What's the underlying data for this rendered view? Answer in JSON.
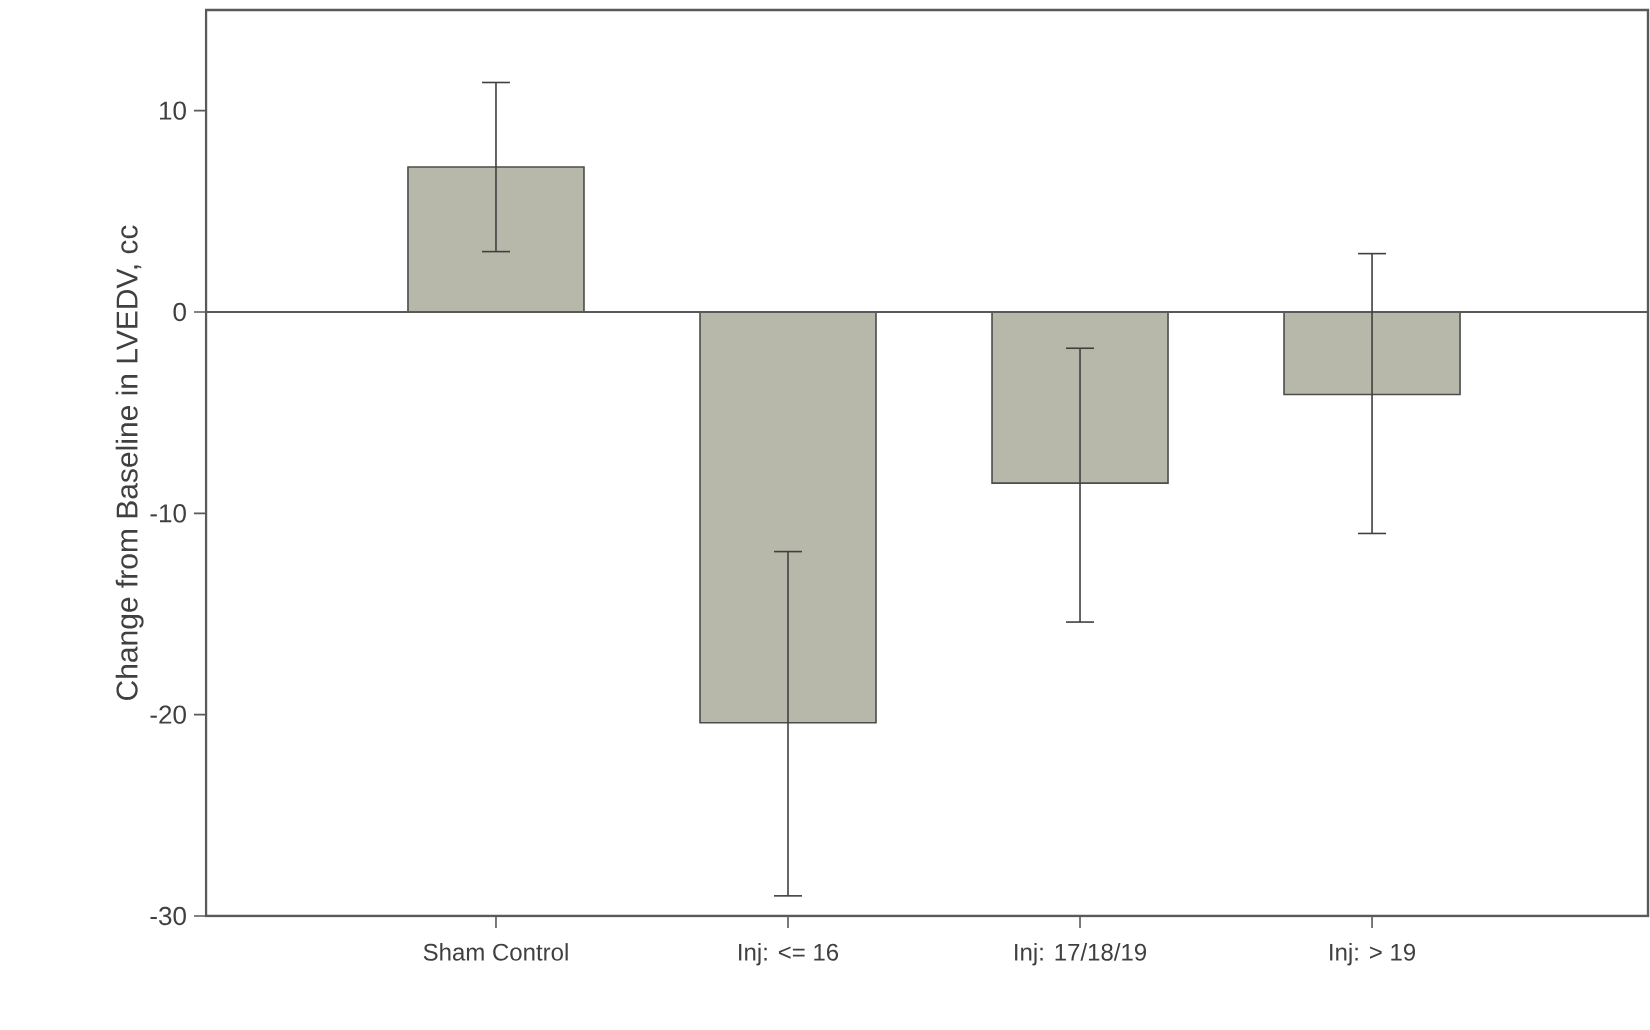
{
  "chart_data": {
    "type": "bar",
    "ylabel": "Change from Baseline in LVEDV, cc",
    "categories": [
      "Sham Control",
      "Inj: <= 16",
      "Inj: 17/18/19",
      "Inj: > 19"
    ],
    "values": [
      7.2,
      -20.4,
      -8.5,
      -4.1
    ],
    "errors": [
      [
        3.0,
        11.4
      ],
      [
        -29.0,
        -11.9
      ],
      [
        -15.4,
        -1.8
      ],
      [
        -11.0,
        2.9
      ]
    ],
    "color": "#b8b8aa",
    "ylim": [
      -30,
      15
    ],
    "yticks": [
      -30,
      -20,
      -10,
      0,
      10
    ],
    "ref_lines": [
      {
        "axis": "y",
        "value": 0
      }
    ],
    "grid": false
  }
}
